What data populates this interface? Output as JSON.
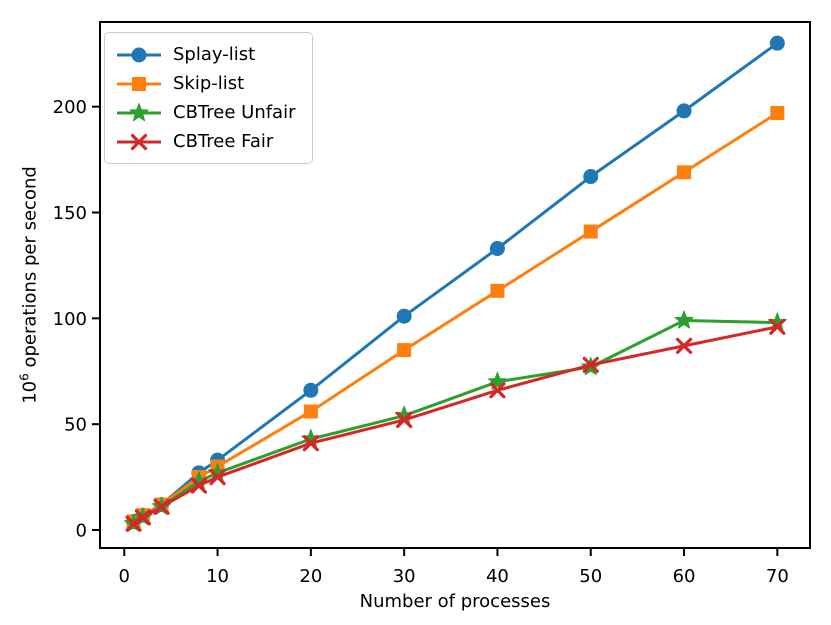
{
  "chart_data": {
    "type": "line",
    "title": "",
    "xlabel": "Number of processes",
    "ylabel": "10⁶ operations per second",
    "ylabel_base": "10",
    "ylabel_exp": "6",
    "ylabel_rest": " operations per second",
    "x": [
      1,
      2,
      4,
      8,
      10,
      20,
      30,
      40,
      50,
      60,
      70
    ],
    "xticks": [
      0,
      10,
      20,
      30,
      40,
      50,
      60,
      70
    ],
    "yticks": [
      0,
      50,
      100,
      150,
      200
    ],
    "xlim": [
      -2.6,
      73.5
    ],
    "ylim": [
      -8.5,
      240
    ],
    "grid": false,
    "legend_position": "upper-left",
    "axis_color": "#000000",
    "background_color": "#ffffff",
    "series": [
      {
        "name": "Splay-list",
        "color": "#1f77b4",
        "marker": "circle",
        "values": [
          4,
          7,
          12,
          27,
          33,
          66,
          101,
          133,
          167,
          198,
          230
        ]
      },
      {
        "name": "Skip-list",
        "color": "#ff7f0e",
        "marker": "square",
        "values": [
          4,
          7,
          12,
          25,
          30,
          56,
          85,
          113,
          141,
          169,
          197
        ]
      },
      {
        "name": "CBTree Unfair",
        "color": "#2ca02c",
        "marker": "star",
        "values": [
          3,
          6,
          11,
          23,
          27,
          43,
          54,
          70,
          77,
          99,
          98
        ]
      },
      {
        "name": "CBTree Fair",
        "color": "#d62728",
        "marker": "x",
        "values": [
          3,
          6,
          11,
          21,
          25,
          41,
          52,
          66,
          78,
          87,
          96
        ]
      }
    ]
  }
}
